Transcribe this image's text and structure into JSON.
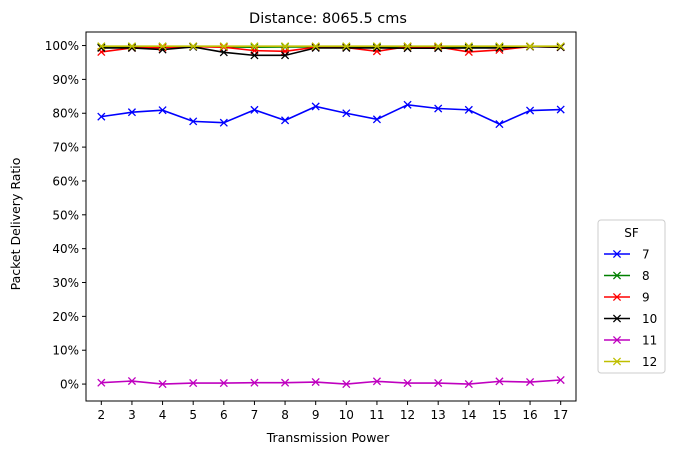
{
  "chart_data": {
    "type": "line",
    "title": "Distance: 8065.5 cms",
    "xlabel": "Transmission Power",
    "ylabel": "Packet Delivery Ratio",
    "x": [
      2,
      3,
      4,
      5,
      6,
      7,
      8,
      9,
      10,
      11,
      12,
      13,
      14,
      15,
      16,
      17
    ],
    "xlim": [
      1.5,
      17.5
    ],
    "ylim": [
      -0.05,
      1.04
    ],
    "yticks": [
      0,
      0.1,
      0.2,
      0.3,
      0.4,
      0.5,
      0.6,
      0.7,
      0.8,
      0.9,
      1.0
    ],
    "ytick_labels": [
      "0%",
      "10%",
      "20%",
      "30%",
      "40%",
      "50%",
      "60%",
      "70%",
      "80%",
      "90%",
      "100%"
    ],
    "grid": false,
    "legend": {
      "title": "SF",
      "placement": "outside-right"
    },
    "marker": "x",
    "series": [
      {
        "name": "7",
        "color": "#0000ff",
        "values": [
          0.79,
          0.803,
          0.809,
          0.776,
          0.772,
          0.81,
          0.779,
          0.82,
          0.8,
          0.782,
          0.825,
          0.814,
          0.81,
          0.768,
          0.808,
          0.811
        ]
      },
      {
        "name": "8",
        "color": "#008000",
        "values": [
          0.995,
          0.996,
          0.996,
          0.997,
          0.996,
          0.995,
          0.996,
          0.996,
          0.997,
          0.996,
          0.997,
          0.996,
          0.995,
          0.996,
          0.997,
          0.996
        ]
      },
      {
        "name": "9",
        "color": "#ff0000",
        "values": [
          0.981,
          0.993,
          0.994,
          0.997,
          0.995,
          0.985,
          0.983,
          0.995,
          0.994,
          0.983,
          0.997,
          0.996,
          0.981,
          0.987,
          0.997,
          0.995
        ]
      },
      {
        "name": "10",
        "color": "#000000",
        "values": [
          0.993,
          0.993,
          0.988,
          0.996,
          0.98,
          0.971,
          0.971,
          0.993,
          0.993,
          0.993,
          0.992,
          0.992,
          0.993,
          0.993,
          0.997,
          0.995
        ]
      },
      {
        "name": "11",
        "color": "#bf00bf",
        "values": [
          0.004,
          0.009,
          0.0,
          0.003,
          0.003,
          0.004,
          0.004,
          0.006,
          0.0,
          0.008,
          0.003,
          0.003,
          0.0,
          0.008,
          0.006,
          0.012
        ]
      },
      {
        "name": "12",
        "color": "#bfbf00",
        "values": [
          0.998,
          0.998,
          0.998,
          0.998,
          0.998,
          0.998,
          0.998,
          0.998,
          0.998,
          0.998,
          0.998,
          0.998,
          0.998,
          0.998,
          0.998,
          0.998
        ]
      }
    ]
  }
}
